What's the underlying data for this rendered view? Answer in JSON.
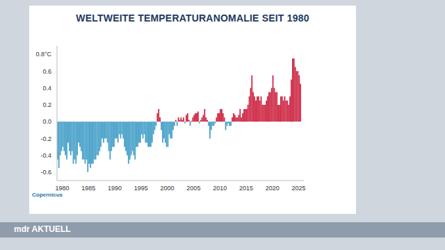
{
  "chart_data": {
    "type": "bar",
    "title": "WELTWEITE TEMPERATURANOMALIE SEIT 1980",
    "source": "Copernicus",
    "channel": "mdr AKTUELL",
    "x": [
      1979.125,
      1979.375,
      1979.625,
      1979.875,
      1980.125,
      1980.375,
      1980.625,
      1980.875,
      1981.125,
      1981.375,
      1981.625,
      1981.875,
      1982.125,
      1982.375,
      1982.625,
      1982.875,
      1983.125,
      1983.375,
      1983.625,
      1983.875,
      1984.125,
      1984.375,
      1984.625,
      1984.875,
      1985.125,
      1985.375,
      1985.625,
      1985.875,
      1986.125,
      1986.375,
      1986.625,
      1986.875,
      1987.125,
      1987.375,
      1987.625,
      1987.875,
      1988.125,
      1988.375,
      1988.625,
      1988.875,
      1989.125,
      1989.375,
      1989.625,
      1989.875,
      1990.125,
      1990.375,
      1990.625,
      1990.875,
      1991.125,
      1991.375,
      1991.625,
      1991.875,
      1992.125,
      1992.375,
      1992.625,
      1992.875,
      1993.125,
      1993.375,
      1993.625,
      1993.875,
      1994.125,
      1994.375,
      1994.625,
      1994.875,
      1995.125,
      1995.375,
      1995.625,
      1995.875,
      1996.125,
      1996.375,
      1996.625,
      1996.875,
      1997.125,
      1997.375,
      1997.625,
      1997.875,
      1998.125,
      1998.375,
      1998.625,
      1998.875,
      1999.125,
      1999.375,
      1999.625,
      1999.875,
      2000.125,
      2000.375,
      2000.625,
      2000.875,
      2001.125,
      2001.375,
      2001.625,
      2001.875,
      2002.125,
      2002.375,
      2002.625,
      2002.875,
      2003.125,
      2003.375,
      2003.625,
      2003.875,
      2004.125,
      2004.375,
      2004.625,
      2004.875,
      2005.125,
      2005.375,
      2005.625,
      2005.875,
      2006.125,
      2006.375,
      2006.625,
      2006.875,
      2007.125,
      2007.375,
      2007.625,
      2007.875,
      2008.125,
      2008.375,
      2008.625,
      2008.875,
      2009.125,
      2009.375,
      2009.625,
      2009.875,
      2010.125,
      2010.375,
      2010.625,
      2010.875,
      2011.125,
      2011.375,
      2011.625,
      2011.875,
      2012.125,
      2012.375,
      2012.625,
      2012.875,
      2013.125,
      2013.375,
      2013.625,
      2013.875,
      2014.125,
      2014.375,
      2014.625,
      2014.875,
      2015.125,
      2015.375,
      2015.625,
      2015.875,
      2016.125,
      2016.375,
      2016.625,
      2016.875,
      2017.125,
      2017.375,
      2017.625,
      2017.875,
      2018.125,
      2018.375,
      2018.625,
      2018.875,
      2019.125,
      2019.375,
      2019.625,
      2019.875,
      2020.125,
      2020.375,
      2020.625,
      2020.875,
      2021.125,
      2021.375,
      2021.625,
      2021.875,
      2022.125,
      2022.375,
      2022.625,
      2022.875,
      2023.125,
      2023.375,
      2023.625,
      2023.875,
      2024.125,
      2024.375,
      2024.625,
      2024.875,
      2025.125,
      2025.375
    ],
    "values": [
      -0.45,
      -0.55,
      -0.4,
      -0.35,
      -0.3,
      -0.35,
      -0.4,
      -0.45,
      -0.25,
      -0.35,
      -0.4,
      -0.35,
      -0.5,
      -0.45,
      -0.5,
      -0.4,
      -0.25,
      -0.3,
      -0.35,
      -0.45,
      -0.45,
      -0.5,
      -0.45,
      -0.6,
      -0.5,
      -0.55,
      -0.5,
      -0.5,
      -0.45,
      -0.45,
      -0.4,
      -0.4,
      -0.35,
      -0.3,
      -0.2,
      -0.25,
      -0.2,
      -0.2,
      -0.25,
      -0.35,
      -0.45,
      -0.35,
      -0.3,
      -0.3,
      -0.2,
      -0.2,
      -0.25,
      -0.15,
      -0.2,
      -0.15,
      -0.2,
      -0.3,
      -0.35,
      -0.4,
      -0.5,
      -0.45,
      -0.4,
      -0.35,
      -0.4,
      -0.45,
      -0.3,
      -0.3,
      -0.25,
      -0.25,
      -0.15,
      -0.2,
      -0.15,
      -0.25,
      -0.25,
      -0.3,
      -0.3,
      -0.3,
      -0.25,
      -0.15,
      -0.1,
      -0.05,
      0.1,
      0.15,
      0.05,
      -0.1,
      -0.25,
      -0.2,
      -0.25,
      -0.3,
      -0.3,
      -0.15,
      -0.2,
      -0.2,
      -0.1,
      -0.05,
      0.02,
      -0.05,
      0.05,
      0.02,
      0.05,
      0.02,
      0.05,
      -0.02,
      0.08,
      0.1,
      0.02,
      -0.05,
      0.01,
      0.05,
      0.08,
      0.1,
      0.1,
      0.12,
      -0.02,
      0.02,
      0.05,
      0.08,
      0.15,
      0.05,
      0.02,
      -0.05,
      -0.2,
      -0.1,
      -0.05,
      -0.05,
      -0.02,
      0.05,
      0.1,
      0.1,
      0.15,
      0.15,
      0.1,
      0.05,
      -0.1,
      -0.05,
      -0.02,
      -0.05,
      -0.05,
      0.05,
      0.1,
      0.08,
      0.05,
      0.05,
      0.08,
      0.15,
      0.05,
      0.1,
      0.15,
      0.15,
      0.15,
      0.2,
      0.3,
      0.4,
      0.55,
      0.35,
      0.3,
      0.25,
      0.3,
      0.3,
      0.25,
      0.3,
      0.2,
      0.2,
      0.2,
      0.25,
      0.3,
      0.35,
      0.35,
      0.4,
      0.55,
      0.4,
      0.35,
      0.35,
      0.2,
      0.2,
      0.3,
      0.3,
      0.25,
      0.3,
      0.25,
      0.25,
      0.2,
      0.3,
      0.5,
      0.75,
      0.75,
      0.65,
      0.6,
      0.6,
      0.55,
      0.45
    ],
    "colors": [
      "#3f9cc6",
      "#3f9cc6",
      "#3f9cc6",
      "#3f9cc6",
      "#3f9cc6",
      "#3f9cc6",
      "#3f9cc6",
      "#3f9cc6",
      "#3f9cc6",
      "#3f9cc6",
      "#3f9cc6",
      "#3f9cc6",
      "#3f9cc6",
      "#3f9cc6",
      "#3f9cc6",
      "#3f9cc6",
      "#3f9cc6",
      "#3f9cc6",
      "#3f9cc6",
      "#3f9cc6",
      "#3f9cc6",
      "#3f9cc6",
      "#3f9cc6",
      "#3f9cc6",
      "#3f9cc6",
      "#3f9cc6",
      "#3f9cc6",
      "#3f9cc6",
      "#3f9cc6",
      "#3f9cc6",
      "#3f9cc6",
      "#3f9cc6",
      "#3f9cc6",
      "#3f9cc6",
      "#3f9cc6",
      "#3f9cc6",
      "#3f9cc6",
      "#3f9cc6",
      "#3f9cc6",
      "#3f9cc6",
      "#3f9cc6",
      "#3f9cc6",
      "#3f9cc6",
      "#3f9cc6",
      "#3f9cc6",
      "#3f9cc6",
      "#3f9cc6",
      "#3f9cc6",
      "#3f9cc6",
      "#3f9cc6",
      "#3f9cc6",
      "#3f9cc6",
      "#3f9cc6",
      "#3f9cc6",
      "#3f9cc6",
      "#3f9cc6",
      "#3f9cc6",
      "#3f9cc6",
      "#3f9cc6",
      "#3f9cc6",
      "#3f9cc6",
      "#3f9cc6",
      "#3f9cc6",
      "#3f9cc6",
      "#3f9cc6",
      "#3f9cc6",
      "#3f9cc6",
      "#3f9cc6",
      "#3f9cc6",
      "#3f9cc6",
      "#3f9cc6",
      "#3f9cc6",
      "#3f9cc6",
      "#3f9cc6",
      "#3f9cc6",
      "#3f9cc6",
      "#cc1e3c",
      "#cc1e3c",
      "#cc1e3c",
      "#3f9cc6",
      "#3f9cc6",
      "#3f9cc6",
      "#3f9cc6",
      "#3f9cc6",
      "#3f9cc6",
      "#3f9cc6",
      "#3f9cc6",
      "#3f9cc6",
      "#3f9cc6",
      "#3f9cc6",
      "#cc1e3c",
      "#3f9cc6",
      "#cc1e3c",
      "#cc1e3c",
      "#cc1e3c",
      "#cc1e3c",
      "#cc1e3c",
      "#3f9cc6",
      "#cc1e3c",
      "#cc1e3c",
      "#cc1e3c",
      "#3f9cc6",
      "#cc1e3c",
      "#cc1e3c",
      "#cc1e3c",
      "#cc1e3c",
      "#cc1e3c",
      "#cc1e3c",
      "#3f9cc6",
      "#cc1e3c",
      "#cc1e3c",
      "#cc1e3c",
      "#cc1e3c",
      "#cc1e3c",
      "#cc1e3c",
      "#3f9cc6",
      "#3f9cc6",
      "#3f9cc6",
      "#3f9cc6",
      "#3f9cc6",
      "#3f9cc6",
      "#cc1e3c",
      "#cc1e3c",
      "#cc1e3c",
      "#cc1e3c",
      "#cc1e3c",
      "#cc1e3c",
      "#cc1e3c",
      "#3f9cc6",
      "#3f9cc6",
      "#3f9cc6",
      "#3f9cc6",
      "#3f9cc6",
      "#cc1e3c",
      "#cc1e3c",
      "#cc1e3c",
      "#cc1e3c",
      "#cc1e3c",
      "#cc1e3c",
      "#cc1e3c",
      "#cc1e3c",
      "#cc1e3c",
      "#cc1e3c",
      "#cc1e3c",
      "#cc1e3c",
      "#cc1e3c",
      "#cc1e3c",
      "#cc1e3c",
      "#cc1e3c",
      "#cc1e3c",
      "#cc1e3c",
      "#cc1e3c",
      "#cc1e3c",
      "#cc1e3c",
      "#cc1e3c",
      "#cc1e3c",
      "#cc1e3c",
      "#cc1e3c",
      "#cc1e3c",
      "#cc1e3c",
      "#cc1e3c",
      "#cc1e3c",
      "#cc1e3c",
      "#cc1e3c",
      "#cc1e3c",
      "#cc1e3c",
      "#cc1e3c",
      "#cc1e3c",
      "#cc1e3c",
      "#cc1e3c",
      "#cc1e3c",
      "#cc1e3c",
      "#cc1e3c",
      "#cc1e3c",
      "#cc1e3c",
      "#cc1e3c",
      "#cc1e3c",
      "#cc1e3c",
      "#cc1e3c",
      "#cc1e3c",
      "#cc1e3c",
      "#cc1e3c",
      "#cc1e3c",
      "#cc1e3c",
      "#cc1e3c",
      "#cc1e3c"
    ],
    "xlim": [
      1979,
      2026
    ],
    "xticks": [
      1980,
      1985,
      1990,
      1995,
      2000,
      2005,
      2010,
      2015,
      2020,
      2025
    ],
    "ylim": [
      -0.7,
      0.9
    ],
    "yticks": [
      -0.6,
      -0.4,
      -0.2,
      {
        "value": 0,
        "label": "0.0"
      },
      0.2,
      0.4,
      0.6,
      {
        "value": 0.8,
        "label": "0.8°C"
      }
    ],
    "grid": false
  }
}
